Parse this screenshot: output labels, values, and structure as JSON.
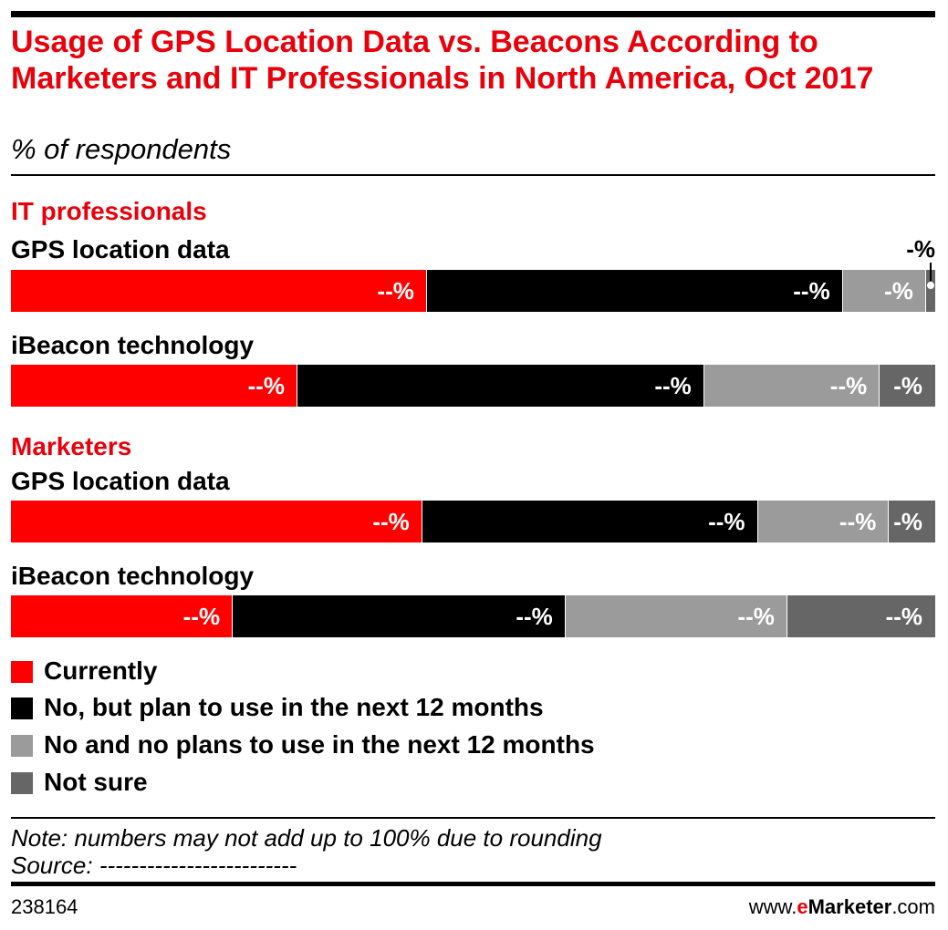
{
  "header": {
    "title": "Usage of GPS Location Data vs. Beacons According to Marketers and IT Professionals in North America, Oct 2017",
    "subtitle": "% of respondents"
  },
  "chart_data": {
    "type": "bar",
    "stacked": true,
    "orientation": "horizontal",
    "colors": {
      "Currently": "#ff0000",
      "No, but plan to use in the next 12 months": "#000000",
      "No and no plans to use in the next 12 months": "#9b9b9b",
      "Not sure": "#666666"
    },
    "legend": {
      "position": "bottom",
      "entries": [
        "Currently",
        "No, but plan to use in the next 12 months",
        "No and no plans to use in the next 12 months",
        "Not sure"
      ]
    },
    "groups": [
      {
        "name": "IT professionals",
        "rows": [
          {
            "category": "GPS location data",
            "values": [
              45,
              45,
              9,
              1
            ],
            "labels": [
              "--%",
              "--%",
              "-%",
              "-%"
            ]
          },
          {
            "category": "iBeacon technology",
            "values": [
              31,
              44,
              19,
              6
            ],
            "labels": [
              "--%",
              "--%",
              "--%",
              "-%"
            ]
          }
        ]
      },
      {
        "name": "Marketers",
        "rows": [
          {
            "category": "GPS location data",
            "values": [
              44.5,
              36.3,
              14.2,
              5
            ],
            "labels": [
              "--%",
              "--%",
              "--%",
              "-%"
            ]
          },
          {
            "category": "iBeacon technology",
            "values": [
              24,
              36,
              24,
              16
            ],
            "labels": [
              "--%",
              "--%",
              "--%",
              "--%"
            ]
          }
        ]
      }
    ]
  },
  "footer": {
    "note": "Note: numbers may not add up to 100% due to rounding",
    "source": "Source: -------------------------",
    "chart_id": "238164",
    "brand_prefix": "www.",
    "brand_accent": "e",
    "brand_name": "Marketer",
    "brand_suffix": ".com"
  }
}
